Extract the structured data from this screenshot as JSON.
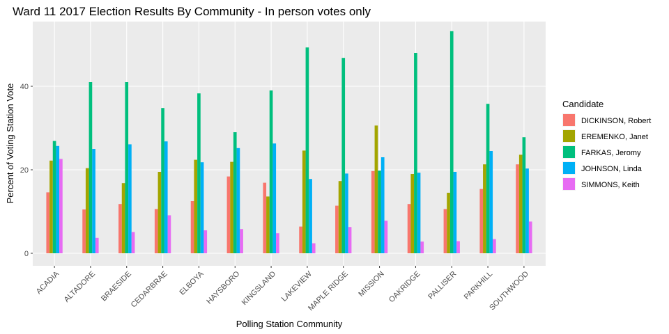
{
  "chart_data": {
    "type": "bar",
    "title": "Ward 11 2017 Election Results By Community - In person votes only",
    "xlabel": "Polling Station Community",
    "ylabel": "Percent of Voting Station Vote",
    "ylim": [
      -3,
      55.5
    ],
    "yticks": [
      0,
      20,
      40
    ],
    "grid": true,
    "legend": {
      "title": "Candidate",
      "position": "right"
    },
    "categories": [
      "ACADIA",
      "ALTADORE",
      "BRAESIDE",
      "CEDARBRAE",
      "ELBOYA",
      "HAYSBORO",
      "KINGSLAND",
      "LAKEVIEW",
      "MAPLE RIDGE",
      "MISSION",
      "OAKRIDGE",
      "PALLISER",
      "PARKHILL",
      "SOUTHWOOD"
    ],
    "series": [
      {
        "name": "DICKINSON, Robert",
        "color": "#F8766D",
        "values": [
          14.6,
          10.5,
          11.8,
          10.6,
          12.5,
          18.4,
          16.9,
          6.4,
          11.4,
          19.7,
          11.8,
          10.6,
          15.4,
          21.3
        ]
      },
      {
        "name": "EREMENKO, Janet",
        "color": "#A3A500",
        "values": [
          22.2,
          20.4,
          16.8,
          19.5,
          22.4,
          21.9,
          13.6,
          24.6,
          17.3,
          30.6,
          19.0,
          14.5,
          21.3,
          23.6
        ]
      },
      {
        "name": "FARKAS, Jeromy",
        "color": "#00BF7D",
        "values": [
          26.9,
          41.0,
          41.0,
          34.8,
          38.3,
          29.0,
          39.0,
          49.3,
          46.8,
          19.8,
          48.0,
          53.2,
          35.8,
          27.8
        ]
      },
      {
        "name": "JOHNSON, Linda",
        "color": "#00B0F6",
        "values": [
          25.7,
          25.0,
          26.1,
          26.8,
          21.8,
          25.2,
          26.3,
          17.8,
          19.1,
          23.0,
          19.3,
          19.5,
          24.5,
          20.3
        ]
      },
      {
        "name": "SIMMONS, Keith",
        "color": "#E76BF3",
        "values": [
          22.6,
          3.7,
          5.1,
          9.1,
          5.5,
          5.8,
          4.8,
          2.4,
          6.3,
          7.8,
          2.8,
          2.9,
          3.4,
          7.6
        ]
      }
    ]
  }
}
